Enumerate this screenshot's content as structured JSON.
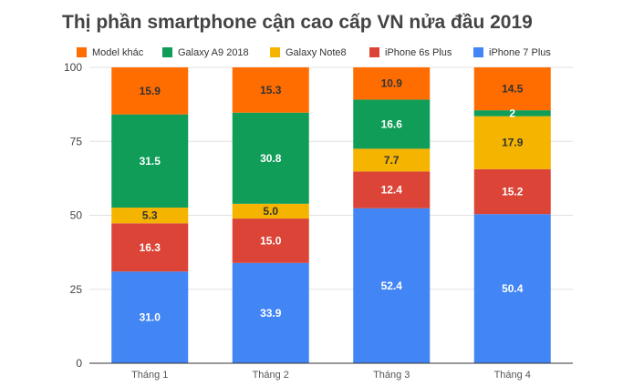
{
  "chart_data": {
    "type": "bar",
    "stacked": true,
    "title": "Thị phần smartphone cận cao cấp VN nửa đầu 2019",
    "categories": [
      "Tháng 1",
      "Tháng 2",
      "Tháng 3",
      "Tháng 4"
    ],
    "series": [
      {
        "name": "iPhone 7 Plus",
        "color": "#4285f4",
        "label_color": "#ffffff",
        "values": [
          31.0,
          33.9,
          52.4,
          50.4
        ],
        "labels": [
          "31.0",
          "33.9",
          "52.4",
          "50.4"
        ]
      },
      {
        "name": "iPhone 6s Plus",
        "color": "#db4437",
        "label_color": "#ffffff",
        "values": [
          16.3,
          15.0,
          12.4,
          15.2
        ],
        "labels": [
          "16.3",
          "15.0",
          "12.4",
          "15.2"
        ]
      },
      {
        "name": "Galaxy Note8",
        "color": "#f4b400",
        "label_color": "#333333",
        "values": [
          5.3,
          5.0,
          7.7,
          17.9
        ],
        "labels": [
          "5.3",
          "5.0",
          "7.7",
          "17.9"
        ]
      },
      {
        "name": "Galaxy A9 2018",
        "color": "#0f9d58",
        "label_color": "#ffffff",
        "values": [
          31.5,
          30.8,
          16.6,
          2.0
        ],
        "labels": [
          "31.5",
          "30.8",
          "16.6",
          "2"
        ]
      },
      {
        "name": "Model khác",
        "color": "#ff6d01",
        "label_color": "#333333",
        "values": [
          15.9,
          15.3,
          10.9,
          14.5
        ],
        "labels": [
          "15.9",
          "15.3",
          "10.9",
          "14.5"
        ]
      }
    ],
    "legend_order": [
      "Model khác",
      "Galaxy A9 2018",
      "Galaxy Note8",
      "iPhone 6s Plus",
      "iPhone 7 Plus"
    ],
    "ylim": [
      0,
      100
    ],
    "yticks": [
      0,
      25,
      50,
      75,
      100
    ],
    "xlabel": "",
    "ylabel": "",
    "grid": true,
    "legend_position": "top"
  }
}
